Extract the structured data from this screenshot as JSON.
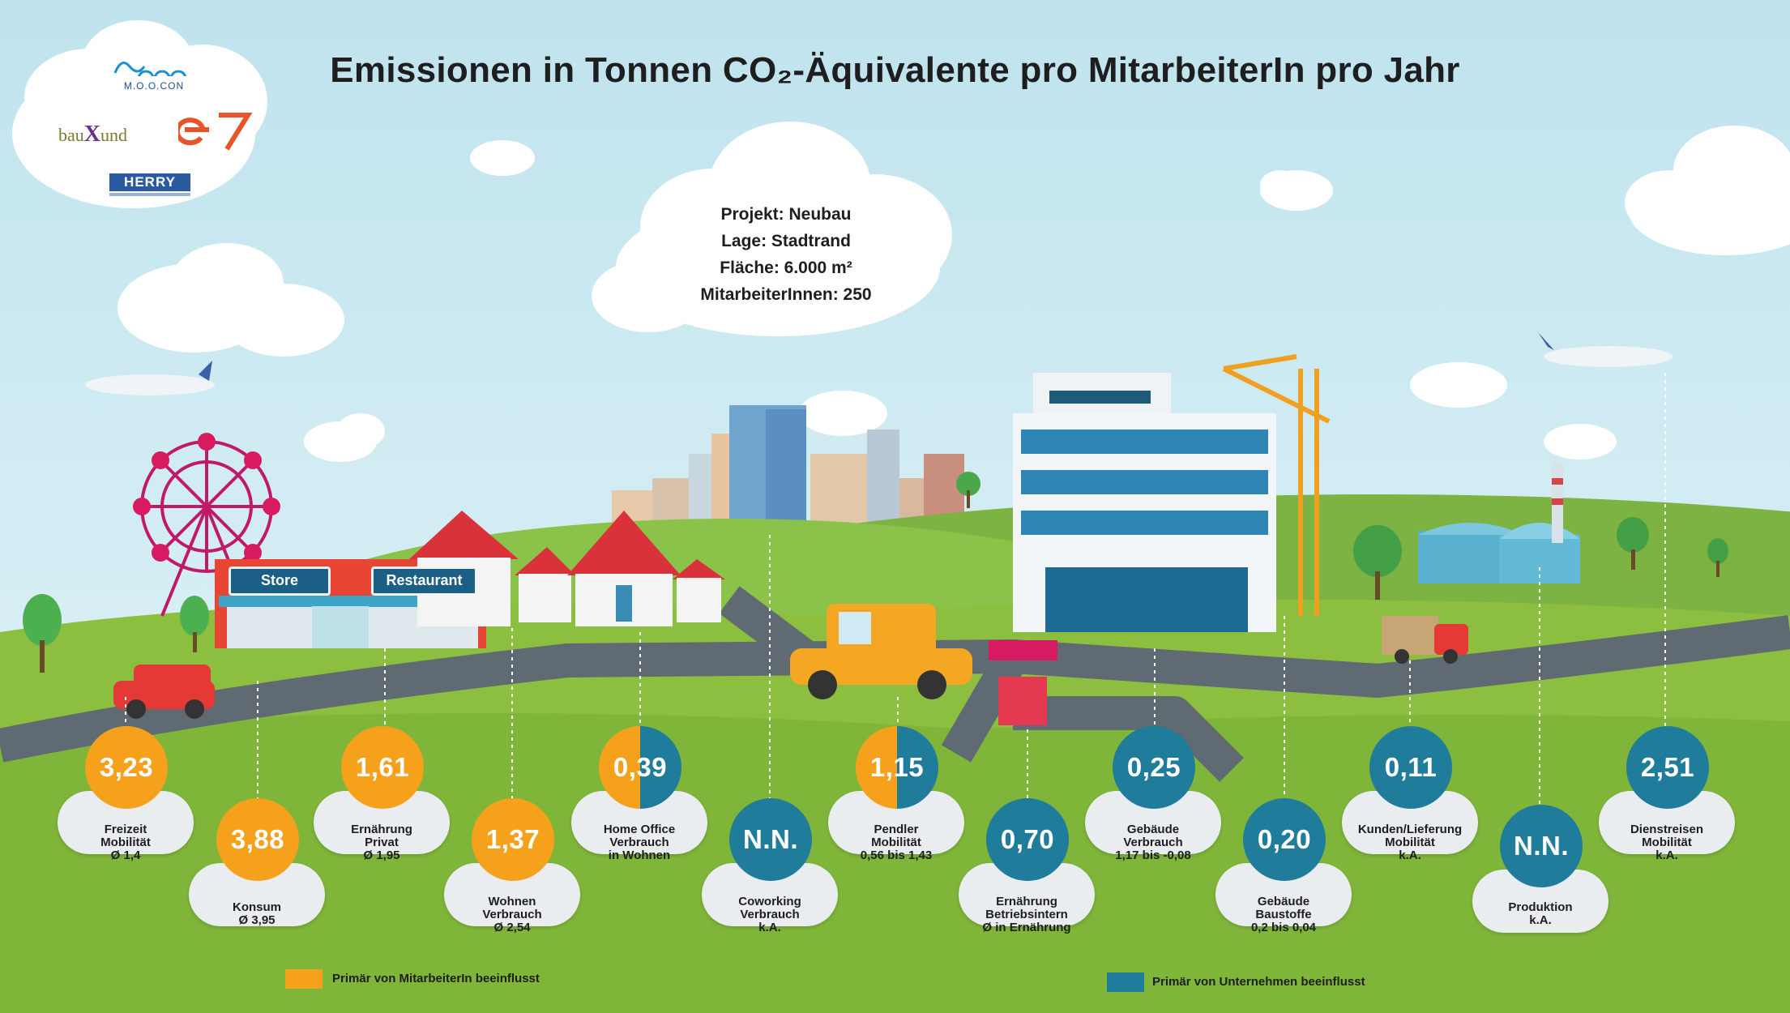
{
  "title": "Emissionen in Tonnen CO₂-Äquivalente pro MitarbeiterIn pro Jahr",
  "project_info": {
    "line1": "Projekt: Neubau",
    "line2": "Lage: Stadtrand",
    "line3": "Fläche: 6.000 m²",
    "line4": "MitarbeiterInnen: 250"
  },
  "logos": {
    "moocon": "M.O.O.CON",
    "bauxund_pre": "bau",
    "bauxund_x": "X",
    "bauxund_post": "und",
    "e7": "e7",
    "herry": "HERRY"
  },
  "signs": {
    "store": "Store",
    "restaurant": "Restaurant"
  },
  "colors": {
    "employee": "#f5a11c",
    "company": "#1f7c9b"
  },
  "items": [
    {
      "value": "3,23",
      "line1": "Freizeit",
      "line2": "Mobilität",
      "line3": "Ø 1,4",
      "color": "employee"
    },
    {
      "value": "3,88",
      "line1": "Konsum",
      "line2": "Ø 3,95",
      "line3": "",
      "color": "employee"
    },
    {
      "value": "1,61",
      "line1": "Ernährung",
      "line2": "Privat",
      "line3": "Ø 1,95",
      "color": "employee"
    },
    {
      "value": "1,37",
      "line1": "Wohnen",
      "line2": "Verbrauch",
      "line3": "Ø 2,54",
      "color": "employee"
    },
    {
      "value": "0,39",
      "line1": "Home Office",
      "line2": "Verbrauch",
      "line3": "in Wohnen",
      "color": "both"
    },
    {
      "value": "N.N.",
      "line1": "Coworking",
      "line2": "Verbrauch",
      "line3": "k.A.",
      "color": "company"
    },
    {
      "value": "1,15",
      "line1": "Pendler",
      "line2": "Mobilität",
      "line3": "0,56 bis 1,43",
      "color": "both"
    },
    {
      "value": "0,70",
      "line1": "Ernährung",
      "line2": "Betriebsintern",
      "line3": "Ø in Ernährung",
      "color": "company"
    },
    {
      "value": "0,25",
      "line1": "Gebäude",
      "line2": "Verbrauch",
      "line3": "1,17 bis -0,08",
      "color": "company"
    },
    {
      "value": "0,20",
      "line1": "Gebäude",
      "line2": "Baustoffe",
      "line3": "0,2 bis 0,04",
      "color": "company"
    },
    {
      "value": "0,11",
      "line1": "Kunden/Lieferung",
      "line2": "Mobilität",
      "line3": "k.A.",
      "color": "company"
    },
    {
      "value": "N.N.",
      "line1": "Produktion",
      "line2": "k.A.",
      "line3": "",
      "color": "company"
    },
    {
      "value": "2,51",
      "line1": "Dienstreisen",
      "line2": "Mobilität",
      "line3": "k.A.",
      "color": "company"
    }
  ],
  "legend": {
    "employee": "Primär von MitarbeiterIn beeinflusst",
    "company": "Primär von Unternehmen beeinflusst"
  }
}
